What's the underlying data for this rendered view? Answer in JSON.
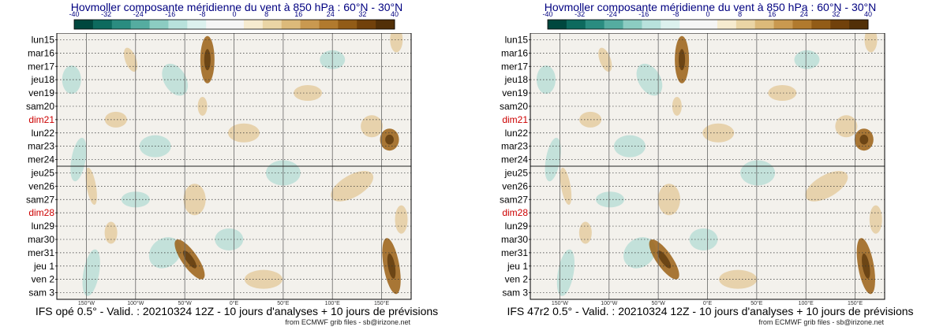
{
  "chart_data": [
    {
      "type": "heatmap",
      "title": "Hovmoller composante méridienne du vent à 850 hPa : 60°N - 30°N",
      "caption": "IFS opé 0.5° - Valid. : 20210324 12Z - 10 jours d'analyses + 10 jours de prévisions",
      "source": "from ECMWF grib files - sb@irizone.net"
    },
    {
      "type": "heatmap",
      "title": "Hovmoller composante méridienne du vent à 850 hPa : 60°N - 30°N",
      "caption": "IFS 47r2 0.5° - Valid. : 20210324 12Z - 10 jours d'analyses + 10 jours de prévisions",
      "source": "from ECMWF grib files - sb@irizone.net"
    }
  ],
  "shared": {
    "days": [
      "lun15",
      "mar16",
      "mer17",
      "jeu18",
      "ven19",
      "sam20",
      "dim21",
      "lun22",
      "mar23",
      "mer24",
      "jeu25",
      "ven26",
      "sam27",
      "dim28",
      "lun29",
      "mar30",
      "mer31",
      "jeu 1",
      "ven 2",
      "sam 3"
    ],
    "sunday_days": [
      "dim21",
      "dim28"
    ],
    "x_ticks": [
      "150°W",
      "100°W",
      "50°W",
      "0°E",
      "50°E",
      "100°E",
      "150°E"
    ],
    "x_tick_values": [
      -150,
      -100,
      -50,
      0,
      50,
      100,
      150
    ],
    "xlim": [
      -180,
      180
    ],
    "analysis_forecast_boundary_day": "jeu25",
    "colorbar_ticks": [
      "-40",
      "-32",
      "-24",
      "-16",
      "-8",
      "0",
      "8",
      "16",
      "24",
      "32",
      "40"
    ],
    "colorbar_values": [
      -40,
      -32,
      -24,
      -16,
      -8,
      0,
      8,
      16,
      24,
      32,
      40
    ],
    "colorbar_colors": [
      "#00473e",
      "#0d6a5e",
      "#2a8c80",
      "#55aca0",
      "#8cccc2",
      "#b8e2dc",
      "#dcf1ee",
      "#f5f5f5",
      "#f5f5f5",
      "#f6ebcf",
      "#ead5a5",
      "#dcba7a",
      "#c99950",
      "#b17a2e",
      "#925c17",
      "#71410b",
      "#523008"
    ],
    "colors": {
      "title": "#000080",
      "sunday": "#cc0000",
      "background_field": "#f3f1ec",
      "positive_mid": "#dcb878",
      "positive_strong": "#9a6015",
      "negative_mid": "#9bd4cc",
      "negative_strong": "#4aa596"
    }
  }
}
